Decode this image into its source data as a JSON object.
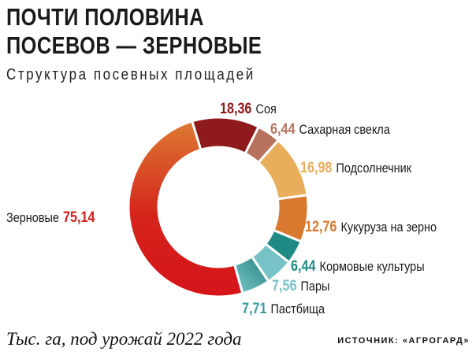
{
  "title_line1": "ПОЧТИ ПОЛОВИНА",
  "title_line2": "ПОСЕВОВ — ЗЕРНОВЫЕ",
  "subtitle": "Структура посевных площадей",
  "footnote": "Тыс. га, под урожай 2022 года",
  "source": "ИСТОЧНИК: «АГРОГАРД»",
  "chart_data": {
    "type": "pie",
    "donut": true,
    "title": "Структура посевных площадей",
    "unit": "Тыс. га",
    "slices": [
      {
        "label": "Соя",
        "value": 18.36,
        "value_text": "18,36",
        "color": "#8e1a1b"
      },
      {
        "label": "Сахарная свекла",
        "value": 6.44,
        "value_text": "6,44",
        "color": "#b8735e"
      },
      {
        "label": "Подсолнечник",
        "value": 16.98,
        "value_text": "16,98",
        "color": "#e8ae5c"
      },
      {
        "label": "Кукуруза на зерно",
        "value": 12.76,
        "value_text": "12,76",
        "color": "#d9782f"
      },
      {
        "label": "Кормовые культуры",
        "value": 6.44,
        "value_text": "6,44",
        "color": "#1f8a83"
      },
      {
        "label": "Пары",
        "value": 7.56,
        "value_text": "7,56",
        "color": "#76c2c6"
      },
      {
        "label": "Пастбища",
        "value": 7.71,
        "value_text": "7,71",
        "color": "#3a9c9a"
      },
      {
        "label": "Зерновые",
        "value": 75.14,
        "value_text": "75,14",
        "color": "#d31f1b"
      }
    ]
  }
}
